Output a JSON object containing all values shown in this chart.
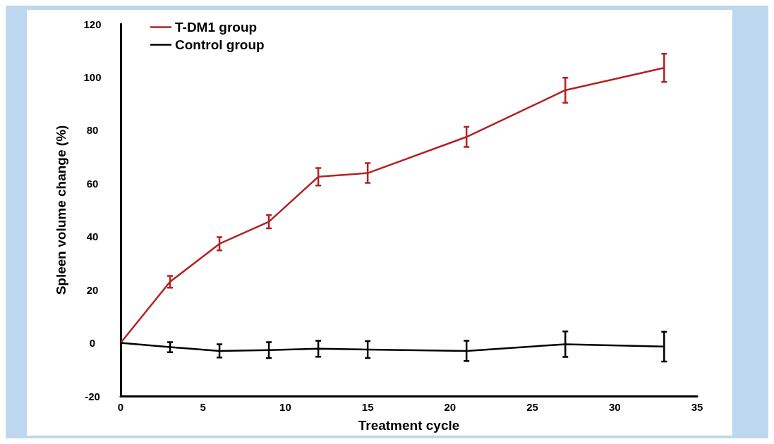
{
  "chart_data": {
    "type": "line",
    "xlabel": "Treatment cycle",
    "ylabel": "Spleen volume change (%)",
    "x": [
      0,
      3,
      6,
      9,
      12,
      15,
      21,
      27,
      33
    ],
    "series": [
      {
        "name": "T-DM1 group",
        "color": "#b22222",
        "values": [
          0,
          23,
          37.3,
          45.6,
          62.5,
          63.9,
          77.5,
          95.1,
          103.5
        ],
        "errors": [
          null,
          2.2,
          2.5,
          2.5,
          3.3,
          3.7,
          3.8,
          4.7,
          5.3
        ]
      },
      {
        "name": "Control group",
        "color": "#000000",
        "values": [
          0,
          -1.6,
          -3,
          -2.7,
          -2.2,
          -2.5,
          -3,
          -0.5,
          -1.4
        ],
        "errors": [
          null,
          1.9,
          2.5,
          3,
          3,
          3.2,
          3.8,
          4.8,
          5.6
        ]
      }
    ],
    "xlim": [
      0,
      35
    ],
    "xticks": [
      0,
      5,
      10,
      15,
      20,
      25,
      30,
      35
    ],
    "ylim": [
      -20,
      120
    ],
    "yticks": [
      -20,
      0,
      20,
      40,
      60,
      80,
      100,
      120
    ],
    "grid": false,
    "legend": "top left",
    "line_style": "solid"
  }
}
